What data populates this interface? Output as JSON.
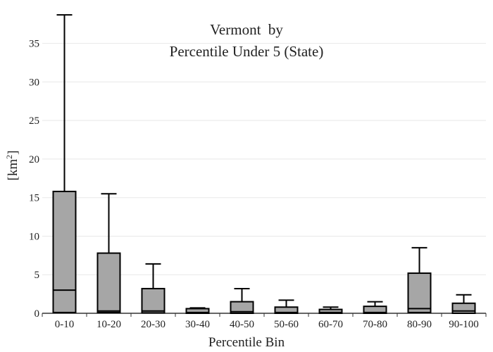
{
  "chart_data": {
    "type": "box",
    "title_lines": [
      "Vermont  by",
      "Percentile Under 5 (State)"
    ],
    "xlabel": "Percentile Bin",
    "ylabel_text": "[km",
    "ylabel_sup": "2",
    "ylabel_close": "]",
    "ylim": [
      0,
      38.8
    ],
    "yticks": [
      0,
      5,
      10,
      15,
      20,
      25,
      30,
      35
    ],
    "grid": true,
    "colors": {
      "box_fill": "#a6a6a6",
      "box_stroke": "#000000",
      "grid": "#e8e8e8",
      "axis": "#333333"
    },
    "categories": [
      "0-10",
      "10-20",
      "20-30",
      "30-40",
      "40-50",
      "50-60",
      "60-70",
      "70-80",
      "80-90",
      "90-100"
    ],
    "boxes": [
      {
        "q1": 0.1,
        "median": 3.0,
        "q3": 15.8,
        "whisker_high": 38.7
      },
      {
        "q1": 0.1,
        "median": 0.3,
        "q3": 7.8,
        "whisker_high": 15.5
      },
      {
        "q1": 0.05,
        "median": 0.3,
        "q3": 3.2,
        "whisker_high": 6.4
      },
      {
        "q1": 0.0,
        "median": 0.1,
        "q3": 0.6,
        "whisker_high": 0.7
      },
      {
        "q1": 0.0,
        "median": 0.2,
        "q3": 1.5,
        "whisker_high": 3.2
      },
      {
        "q1": 0.0,
        "median": 0.1,
        "q3": 0.8,
        "whisker_high": 1.7
      },
      {
        "q1": 0.0,
        "median": 0.1,
        "q3": 0.5,
        "whisker_high": 0.8
      },
      {
        "q1": 0.0,
        "median": 0.1,
        "q3": 0.9,
        "whisker_high": 1.5
      },
      {
        "q1": 0.1,
        "median": 0.6,
        "q3": 5.2,
        "whisker_high": 8.5
      },
      {
        "q1": 0.0,
        "median": 0.3,
        "q3": 1.3,
        "whisker_high": 2.4
      }
    ]
  }
}
